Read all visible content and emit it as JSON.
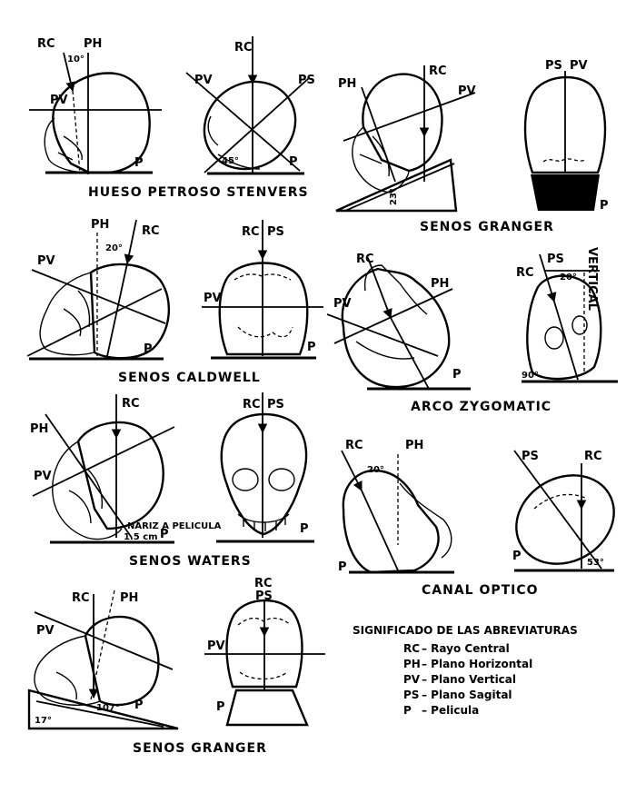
{
  "figures": [
    {
      "id": "stenvers-lateral",
      "labels": {
        "rc": "RC",
        "ph": "PH",
        "pv": "PV",
        "p": "P",
        "angle": "10°"
      }
    },
    {
      "id": "stenvers-frontal",
      "labels": {
        "rc": "RC",
        "pv": "PV",
        "ps": "PS",
        "p": "P",
        "angle": "45°"
      }
    },
    {
      "id": "granger-lateral-top",
      "labels": {
        "rc": "RC",
        "ph": "PH",
        "pv": "PV",
        "angle": "23°"
      }
    },
    {
      "id": "granger-rear",
      "labels": {
        "ps": "PS",
        "pv": "PV",
        "p": "P"
      }
    },
    {
      "id": "caldwell-lateral",
      "labels": {
        "ph": "PH",
        "rc": "RC",
        "pv": "PV",
        "p": "P",
        "angle": "20°"
      }
    },
    {
      "id": "caldwell-frontal",
      "labels": {
        "rc": "RC",
        "ps": "PS",
        "pv": "PV",
        "p": "P"
      }
    },
    {
      "id": "zygomatic-lateral",
      "labels": {
        "rc": "RC",
        "ph": "PH",
        "pv": "PV",
        "p": "P"
      }
    },
    {
      "id": "zygomatic-axial",
      "labels": {
        "rc": "RC",
        "ps": "PS",
        "vertical": "VERTICAL",
        "angle20": "20°",
        "angle90": "90°"
      }
    },
    {
      "id": "waters-lateral",
      "labels": {
        "rc": "RC",
        "ph": "PH",
        "pv": "PV",
        "note": "NARIZ A PELICULA",
        "dist": "1.5 cm",
        "p": "P"
      }
    },
    {
      "id": "waters-frontal",
      "labels": {
        "rc": "RC",
        "ps": "PS",
        "p": "P"
      }
    },
    {
      "id": "optico-lateral",
      "labels": {
        "rc": "RC",
        "ph": "PH",
        "p": "P",
        "angle": "20°"
      }
    },
    {
      "id": "optico-oblique",
      "labels": {
        "ps": "PS",
        "rc": "RC",
        "p": "P",
        "angle": "53°"
      }
    },
    {
      "id": "granger-lateral-bottom",
      "labels": {
        "rc": "RC",
        "ph": "PH",
        "pv": "PV",
        "p": "P",
        "angle17": "17°",
        "angle107": "107°"
      }
    },
    {
      "id": "granger-frontal-bottom",
      "labels": {
        "rc": "RC",
        "ps": "PS",
        "pv": "PV",
        "p": "P"
      }
    }
  ],
  "captions": {
    "stenvers": "HUESO PETROSO STENVERS",
    "granger_top": "SENOS GRANGER",
    "caldwell": "SENOS CALDWELL",
    "zygomatic": "ARCO ZYGOMATIC",
    "waters": "SENOS WATERS",
    "optico": "CANAL OPTICO",
    "granger_bottom": "SENOS GRANGER"
  },
  "legend": {
    "title": "SIGNIFICADO DE LAS ABREVIATURAS",
    "items": [
      {
        "abbr": "RC",
        "meaning": "– Rayo Central"
      },
      {
        "abbr": "PH",
        "meaning": "– Plano Horizontal"
      },
      {
        "abbr": "PV",
        "meaning": "– Plano Vertical"
      },
      {
        "abbr": "PS",
        "meaning": "– Plano Sagital"
      },
      {
        "abbr": "P",
        "meaning": " – Pelicula"
      }
    ]
  }
}
